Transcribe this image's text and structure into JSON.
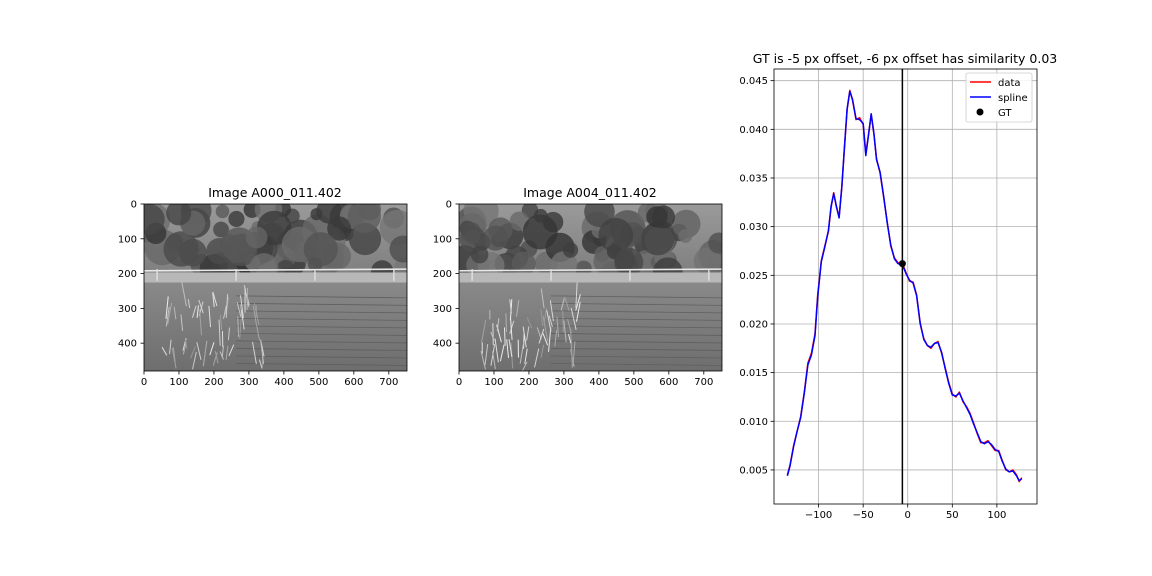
{
  "chart_data": [
    {
      "type": "image",
      "title": "Image A000_011.402",
      "xlim": [
        0,
        752
      ],
      "ylim": [
        480,
        0
      ],
      "xticks": [
        0,
        100,
        200,
        300,
        400,
        500,
        600,
        700
      ],
      "yticks": [
        0,
        100,
        200,
        300,
        400
      ],
      "colormap": "gray"
    },
    {
      "type": "image",
      "title": "Image A004_011.402",
      "xlim": [
        0,
        752
      ],
      "ylim": [
        480,
        0
      ],
      "xticks": [
        0,
        100,
        200,
        300,
        400,
        500,
        600,
        700
      ],
      "yticks": [
        0,
        100,
        200,
        300,
        400
      ],
      "colormap": "gray"
    },
    {
      "type": "line",
      "title": "GT is -5 px offset, -6 px offset has similarity 0.03",
      "xlim": [
        -150,
        145
      ],
      "ylim": [
        0.0015,
        0.0462
      ],
      "xticks": [
        -100,
        -50,
        0,
        50,
        100
      ],
      "yticks": [
        0.005,
        0.01,
        0.015,
        0.02,
        0.025,
        0.03,
        0.035,
        0.04,
        0.045
      ],
      "grid": true,
      "legend_position": "top-right",
      "vline_x": -6,
      "series": [
        {
          "name": "data",
          "color": "#ff0000",
          "points": [
            [
              -135,
              0.0045
            ],
            [
              -132,
              0.0055
            ],
            [
              -128,
              0.0075
            ],
            [
              -124,
              0.009
            ],
            [
              -120,
              0.0105
            ],
            [
              -116,
              0.013
            ],
            [
              -112,
              0.016
            ],
            [
              -108,
              0.017
            ],
            [
              -104,
              0.019
            ],
            [
              -101,
              0.023
            ],
            [
              -97,
              0.0265
            ],
            [
              -93,
              0.028
            ],
            [
              -89,
              0.0295
            ],
            [
              -86,
              0.032
            ],
            [
              -83,
              0.0335
            ],
            [
              -80,
              0.032
            ],
            [
              -77,
              0.031
            ],
            [
              -74,
              0.034
            ],
            [
              -71,
              0.038
            ],
            [
              -68,
              0.042
            ],
            [
              -65,
              0.044
            ],
            [
              -62,
              0.043
            ],
            [
              -58,
              0.041
            ],
            [
              -54,
              0.0412
            ],
            [
              -50,
              0.0405
            ],
            [
              -47,
              0.0375
            ],
            [
              -44,
              0.0395
            ],
            [
              -41,
              0.0415
            ],
            [
              -38,
              0.0395
            ],
            [
              -35,
              0.037
            ],
            [
              -31,
              0.0355
            ],
            [
              -27,
              0.033
            ],
            [
              -23,
              0.0305
            ],
            [
              -19,
              0.028
            ],
            [
              -15,
              0.0268
            ],
            [
              -11,
              0.0263
            ],
            [
              -6,
              0.0262
            ],
            [
              -2,
              0.0253
            ],
            [
              2,
              0.0244
            ],
            [
              6,
              0.0243
            ],
            [
              10,
              0.023
            ],
            [
              14,
              0.02
            ],
            [
              18,
              0.0185
            ],
            [
              22,
              0.0178
            ],
            [
              26,
              0.0175
            ],
            [
              30,
              0.018
            ],
            [
              34,
              0.0182
            ],
            [
              38,
              0.017
            ],
            [
              42,
              0.0155
            ],
            [
              46,
              0.014
            ],
            [
              50,
              0.0128
            ],
            [
              54,
              0.0125
            ],
            [
              58,
              0.013
            ],
            [
              62,
              0.012
            ],
            [
              66,
              0.0115
            ],
            [
              70,
              0.0108
            ],
            [
              74,
              0.0098
            ],
            [
              78,
              0.0087
            ],
            [
              82,
              0.0078
            ],
            [
              86,
              0.0078
            ],
            [
              90,
              0.008
            ],
            [
              94,
              0.0075
            ],
            [
              98,
              0.007
            ],
            [
              102,
              0.007
            ],
            [
              106,
              0.006
            ],
            [
              110,
              0.005
            ],
            [
              114,
              0.0048
            ],
            [
              118,
              0.005
            ],
            [
              122,
              0.0045
            ],
            [
              125,
              0.0038
            ],
            [
              128,
              0.0042
            ]
          ]
        },
        {
          "name": "spline",
          "color": "#0000ff",
          "points": [
            [
              -135,
              0.0044
            ],
            [
              -132,
              0.0054
            ],
            [
              -128,
              0.0074
            ],
            [
              -124,
              0.009
            ],
            [
              -120,
              0.0104
            ],
            [
              -116,
              0.0129
            ],
            [
              -112,
              0.0158
            ],
            [
              -108,
              0.0168
            ],
            [
              -104,
              0.0188
            ],
            [
              -101,
              0.0228
            ],
            [
              -97,
              0.0264
            ],
            [
              -93,
              0.0279
            ],
            [
              -89,
              0.0296
            ],
            [
              -86,
              0.0321
            ],
            [
              -83,
              0.0334
            ],
            [
              -80,
              0.0321
            ],
            [
              -77,
              0.0309
            ],
            [
              -74,
              0.0341
            ],
            [
              -71,
              0.0381
            ],
            [
              -68,
              0.0421
            ],
            [
              -65,
              0.0439
            ],
            [
              -62,
              0.0431
            ],
            [
              -58,
              0.0411
            ],
            [
              -54,
              0.041
            ],
            [
              -50,
              0.0406
            ],
            [
              -47,
              0.0373
            ],
            [
              -44,
              0.0394
            ],
            [
              -41,
              0.0416
            ],
            [
              -38,
              0.0396
            ],
            [
              -35,
              0.0369
            ],
            [
              -31,
              0.0356
            ],
            [
              -27,
              0.0331
            ],
            [
              -23,
              0.0304
            ],
            [
              -19,
              0.0281
            ],
            [
              -15,
              0.0267
            ],
            [
              -11,
              0.0262
            ],
            [
              -6,
              0.0261
            ],
            [
              -2,
              0.0252
            ],
            [
              2,
              0.0245
            ],
            [
              6,
              0.0242
            ],
            [
              10,
              0.0229
            ],
            [
              14,
              0.0201
            ],
            [
              18,
              0.0184
            ],
            [
              22,
              0.0178
            ],
            [
              26,
              0.0176
            ],
            [
              30,
              0.018
            ],
            [
              34,
              0.0181
            ],
            [
              38,
              0.0171
            ],
            [
              42,
              0.0154
            ],
            [
              46,
              0.0139
            ],
            [
              50,
              0.0127
            ],
            [
              54,
              0.0126
            ],
            [
              58,
              0.0129
            ],
            [
              62,
              0.0121
            ],
            [
              66,
              0.0114
            ],
            [
              70,
              0.0107
            ],
            [
              74,
              0.0097
            ],
            [
              78,
              0.0088
            ],
            [
              82,
              0.0079
            ],
            [
              86,
              0.0077
            ],
            [
              90,
              0.0079
            ],
            [
              94,
              0.0076
            ],
            [
              98,
              0.0071
            ],
            [
              102,
              0.0069
            ],
            [
              106,
              0.0059
            ],
            [
              110,
              0.0051
            ],
            [
              114,
              0.0048
            ],
            [
              118,
              0.0049
            ],
            [
              122,
              0.0044
            ],
            [
              125,
              0.0039
            ],
            [
              128,
              0.0041
            ]
          ]
        },
        {
          "name": "GT",
          "color": "#000000",
          "points": [
            [
              -6,
              0.0262
            ]
          ]
        }
      ]
    }
  ]
}
